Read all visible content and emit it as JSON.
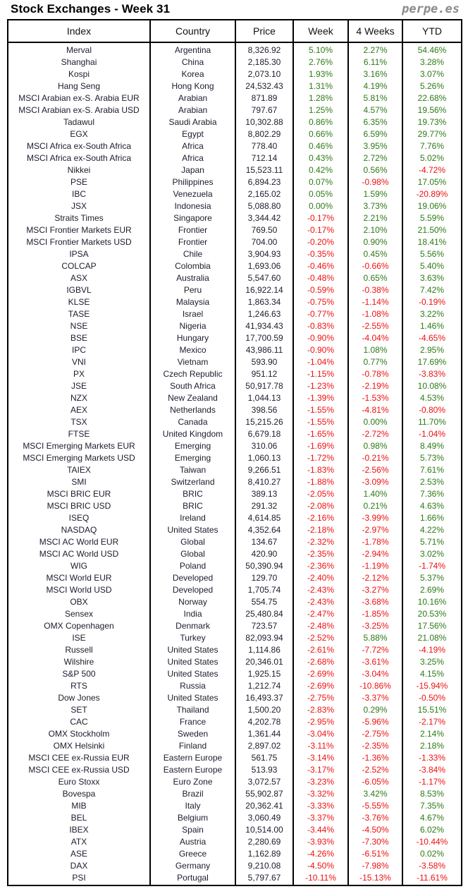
{
  "title": "Stock Exchanges - Week 31",
  "brand": "perpe.es",
  "colors": {
    "positive": "#2d7a14",
    "negative": "#f01010"
  },
  "columns": [
    "Index",
    "Country",
    "Price",
    "Week",
    "4 Weeks",
    "YTD"
  ],
  "rows": [
    [
      "Merval",
      "Argentina",
      "8,326.92",
      "5.10%",
      "2.27%",
      "54.46%"
    ],
    [
      "Shanghai",
      "China",
      "2,185.30",
      "2.76%",
      "6.11%",
      "3.28%"
    ],
    [
      "Kospi",
      "Korea",
      "2,073.10",
      "1.93%",
      "3.16%",
      "3.07%"
    ],
    [
      "Hang Seng",
      "Hong Kong",
      "24,532.43",
      "1.31%",
      "4.19%",
      "5.26%"
    ],
    [
      "MSCI Arabian ex-S. Arabia EUR",
      "Arabian",
      "871.89",
      "1.28%",
      "5.81%",
      "22.68%"
    ],
    [
      "MSCI Arabian ex-S. Arabia USD",
      "Arabian",
      "797.67",
      "1.25%",
      "4.57%",
      "19.56%"
    ],
    [
      "Tadawul",
      "Saudi Arabia",
      "10,302.88",
      "0.86%",
      "6.35%",
      "19.73%"
    ],
    [
      "EGX",
      "Egypt",
      "8,802.29",
      "0.66%",
      "6.59%",
      "29.77%"
    ],
    [
      "MSCI Africa ex-South Africa",
      "Africa",
      "778.40",
      "0.46%",
      "3.95%",
      "7.76%"
    ],
    [
      "MSCI Africa ex-South Africa",
      "Africa",
      "712.14",
      "0.43%",
      "2.72%",
      "5.02%"
    ],
    [
      "Nikkei",
      "Japan",
      "15,523.11",
      "0.42%",
      "0.56%",
      "-4.72%"
    ],
    [
      "PSE",
      "Philippines",
      "6,894.23",
      "0.07%",
      "-0.98%",
      "17.05%"
    ],
    [
      "IBC",
      "Venezuela",
      "2,165.02",
      "0.05%",
      "1.59%",
      "-20.89%"
    ],
    [
      "JSX",
      "Indonesia",
      "5,088.80",
      "0.00%",
      "3.73%",
      "19.06%"
    ],
    [
      "Straits Times",
      "Singapore",
      "3,344.42",
      "-0.17%",
      "2.21%",
      "5.59%"
    ],
    [
      "MSCI Frontier Markets EUR",
      "Frontier",
      "769.50",
      "-0.17%",
      "2.10%",
      "21.50%"
    ],
    [
      "MSCI Frontier Markets USD",
      "Frontier",
      "704.00",
      "-0.20%",
      "0.90%",
      "18.41%"
    ],
    [
      "IPSA",
      "Chile",
      "3,904.93",
      "-0.35%",
      "0.45%",
      "5.56%"
    ],
    [
      "COLCAP",
      "Colombia",
      "1,693.06",
      "-0.46%",
      "-0.66%",
      "5.40%"
    ],
    [
      "ASX",
      "Australia",
      "5,547.60",
      "-0.48%",
      "0.65%",
      "3.63%"
    ],
    [
      "IGBVL",
      "Peru",
      "16,922.14",
      "-0.59%",
      "-0.38%",
      "7.42%"
    ],
    [
      "KLSE",
      "Malaysia",
      "1,863.34",
      "-0.75%",
      "-1.14%",
      "-0.19%"
    ],
    [
      "TASE",
      "Israel",
      "1,246.63",
      "-0.77%",
      "-1.08%",
      "3.22%"
    ],
    [
      "NSE",
      "Nigeria",
      "41,934.43",
      "-0.83%",
      "-2.55%",
      "1.46%"
    ],
    [
      "BSE",
      "Hungary",
      "17,700.59",
      "-0.90%",
      "-4.04%",
      "-4.65%"
    ],
    [
      "IPC",
      "Mexico",
      "43,986.11",
      "-0.90%",
      "1.08%",
      "2.95%"
    ],
    [
      "VNI",
      "Vietnam",
      "593.90",
      "-1.04%",
      "0.77%",
      "17.69%"
    ],
    [
      "PX",
      "Czech Republic",
      "951.12",
      "-1.15%",
      "-0.78%",
      "-3.83%"
    ],
    [
      "JSE",
      "South Africa",
      "50,917.78",
      "-1.23%",
      "-2.19%",
      "10.08%"
    ],
    [
      "NZX",
      "New Zealand",
      "1,044.13",
      "-1.39%",
      "-1.53%",
      "4.53%"
    ],
    [
      "AEX",
      "Netherlands",
      "398.56",
      "-1.55%",
      "-4.81%",
      "-0.80%"
    ],
    [
      "TSX",
      "Canada",
      "15,215.26",
      "-1.55%",
      "0.00%",
      "11.70%"
    ],
    [
      "FTSE",
      "United Kingdom",
      "6,679.18",
      "-1.65%",
      "-2.72%",
      "-1.04%"
    ],
    [
      "MSCI Emerging Markets EUR",
      "Emerging",
      "310.06",
      "-1.69%",
      "0.98%",
      "8.49%"
    ],
    [
      "MSCI Emerging Markets USD",
      "Emerging",
      "1,060.13",
      "-1.72%",
      "-0.21%",
      "5.73%"
    ],
    [
      "TAIEX",
      "Taiwan",
      "9,266.51",
      "-1.83%",
      "-2.56%",
      "7.61%"
    ],
    [
      "SMI",
      "Switzerland",
      "8,410.27",
      "-1.88%",
      "-3.09%",
      "2.53%"
    ],
    [
      "MSCI BRIC EUR",
      "BRIC",
      "389.13",
      "-2.05%",
      "1.40%",
      "7.36%"
    ],
    [
      "MSCI BRIC USD",
      "BRIC",
      "291.32",
      "-2.08%",
      "0.21%",
      "4.63%"
    ],
    [
      "ISEQ",
      "Ireland",
      "4,614.85",
      "-2.16%",
      "-3.99%",
      "1.66%"
    ],
    [
      "NASDAQ",
      "United States",
      "4,352.64",
      "-2.18%",
      "-2.97%",
      "4.22%"
    ],
    [
      "MSCI AC World EUR",
      "Global",
      "134.67",
      "-2.32%",
      "-1.78%",
      "5.71%"
    ],
    [
      "MSCI AC World USD",
      "Global",
      "420.90",
      "-2.35%",
      "-2.94%",
      "3.02%"
    ],
    [
      "WIG",
      "Poland",
      "50,390.94",
      "-2.36%",
      "-1.19%",
      "-1.74%"
    ],
    [
      "MSCI World EUR",
      "Developed",
      "129.70",
      "-2.40%",
      "-2.12%",
      "5.37%"
    ],
    [
      "MSCI World USD",
      "Developed",
      "1,705.74",
      "-2.43%",
      "-3.27%",
      "2.69%"
    ],
    [
      "OBX",
      "Norway",
      "554.75",
      "-2.43%",
      "-3.68%",
      "10.16%"
    ],
    [
      "Sensex",
      "India",
      "25,480.84",
      "-2.47%",
      "-1.85%",
      "20.53%"
    ],
    [
      "OMX Copenhagen",
      "Denmark",
      "723.57",
      "-2.48%",
      "-3.25%",
      "17.56%"
    ],
    [
      "ISE",
      "Turkey",
      "82,093.94",
      "-2.52%",
      "5.88%",
      "21.08%"
    ],
    [
      "Russell",
      "United States",
      "1,114.86",
      "-2.61%",
      "-7.72%",
      "-4.19%"
    ],
    [
      "Wilshire",
      "United States",
      "20,346.01",
      "-2.68%",
      "-3.61%",
      "3.25%"
    ],
    [
      "S&P 500",
      "United States",
      "1,925.15",
      "-2.69%",
      "-3.04%",
      "4.15%"
    ],
    [
      "RTS",
      "Russia",
      "1,212.74",
      "-2.69%",
      "-10.86%",
      "-15.94%"
    ],
    [
      "Dow Jones",
      "United States",
      "16,493.37",
      "-2.75%",
      "-3.37%",
      "-0.50%"
    ],
    [
      "SET",
      "Thailand",
      "1,500.20",
      "-2.83%",
      "0.29%",
      "15.51%"
    ],
    [
      "CAC",
      "France",
      "4,202.78",
      "-2.95%",
      "-5.96%",
      "-2.17%"
    ],
    [
      "OMX Stockholm",
      "Sweden",
      "1,361.44",
      "-3.04%",
      "-2.75%",
      "2.14%"
    ],
    [
      "OMX Helsinki",
      "Finland",
      "2,897.02",
      "-3.11%",
      "-2.35%",
      "2.18%"
    ],
    [
      "MSCI CEE ex-Russia EUR",
      "Eastern Europe",
      "561.75",
      "-3.14%",
      "-1.36%",
      "-1.33%"
    ],
    [
      "MSCI CEE ex-Russia USD",
      "Eastern Europe",
      "513.93",
      "-3.17%",
      "-2.52%",
      "-3.84%"
    ],
    [
      "Euro Stoxx",
      "Euro Zone",
      "3,072.57",
      "-3.23%",
      "-6.05%",
      "-1.17%"
    ],
    [
      "Bovespa",
      "Brazil",
      "55,902.87",
      "-3.32%",
      "3.42%",
      "8.53%"
    ],
    [
      "MIB",
      "Italy",
      "20,362.41",
      "-3.33%",
      "-5.55%",
      "7.35%"
    ],
    [
      "BEL",
      "Belgium",
      "3,060.49",
      "-3.37%",
      "-3.76%",
      "4.67%"
    ],
    [
      "IBEX",
      "Spain",
      "10,514.00",
      "-3.44%",
      "-4.50%",
      "6.02%"
    ],
    [
      "ATX",
      "Austria",
      "2,280.69",
      "-3.93%",
      "-7.30%",
      "-10.44%"
    ],
    [
      "ASE",
      "Greece",
      "1,162.89",
      "-4.26%",
      "-6.51%",
      "0.02%"
    ],
    [
      "DAX",
      "Germany",
      "9,210.08",
      "-4.50%",
      "-7.98%",
      "-3.58%"
    ],
    [
      "PSI",
      "Portugal",
      "5,797.67",
      "-10.11%",
      "-15.13%",
      "-11.61%"
    ]
  ]
}
